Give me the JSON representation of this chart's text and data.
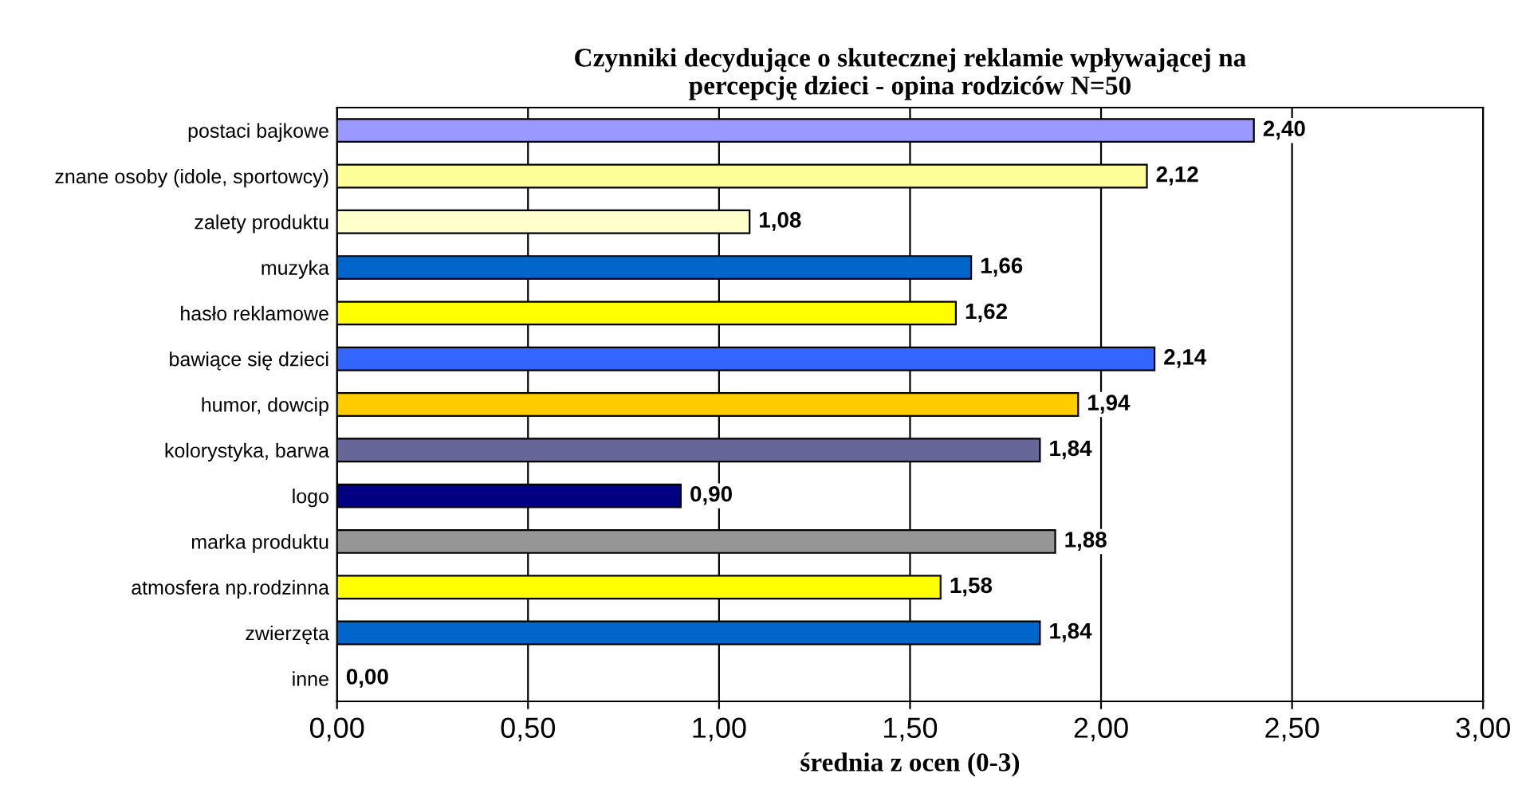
{
  "chart_data": {
    "type": "bar",
    "orientation": "horizontal",
    "title": "Czynniki decydujące o skutecznej reklamie wpływającej na\npercepcję dzieci - opina rodziców N=50",
    "xlabel": "średnia z ocen (0-3)",
    "categories": [
      "postaci bajkowe",
      "znane osoby (idole, sportowcy)",
      "zalety produktu",
      "muzyka",
      "hasło reklamowe",
      "bawiące się dzieci",
      "humor, dowcip",
      "kolorystyka, barwa",
      "logo",
      "marka produktu",
      "atmosfera np.rodzinna",
      "zwierzęta",
      "inne"
    ],
    "values": [
      2.4,
      2.12,
      1.08,
      1.66,
      1.62,
      2.14,
      1.94,
      1.84,
      0.9,
      1.88,
      1.58,
      1.84,
      0.0
    ],
    "colors": [
      "#9999ff",
      "#ffff99",
      "#ffffcc",
      "#0066cc",
      "#ffff00",
      "#3366ff",
      "#ffcc00",
      "#666699",
      "#000080",
      "#969696",
      "#ffff00",
      "#0066cc",
      "#ffffff"
    ],
    "value_labels": [
      "2,40",
      "2,12",
      "1,08",
      "1,66",
      "1,62",
      "2,14",
      "1,94",
      "1,84",
      "0,90",
      "1,88",
      "1,58",
      "1,84",
      "0,00"
    ],
    "xlim": [
      0,
      3
    ],
    "xticks": [
      {
        "value": 0,
        "label": "0,00"
      },
      {
        "value": 0.5,
        "label": "0,50"
      },
      {
        "value": 1,
        "label": "1,00"
      },
      {
        "value": 1.5,
        "label": "1,50"
      },
      {
        "value": 2,
        "label": "2,00"
      },
      {
        "value": 2.5,
        "label": "2,50"
      },
      {
        "value": 3,
        "label": "3,00"
      }
    ],
    "grid": "x",
    "legend": false
  }
}
